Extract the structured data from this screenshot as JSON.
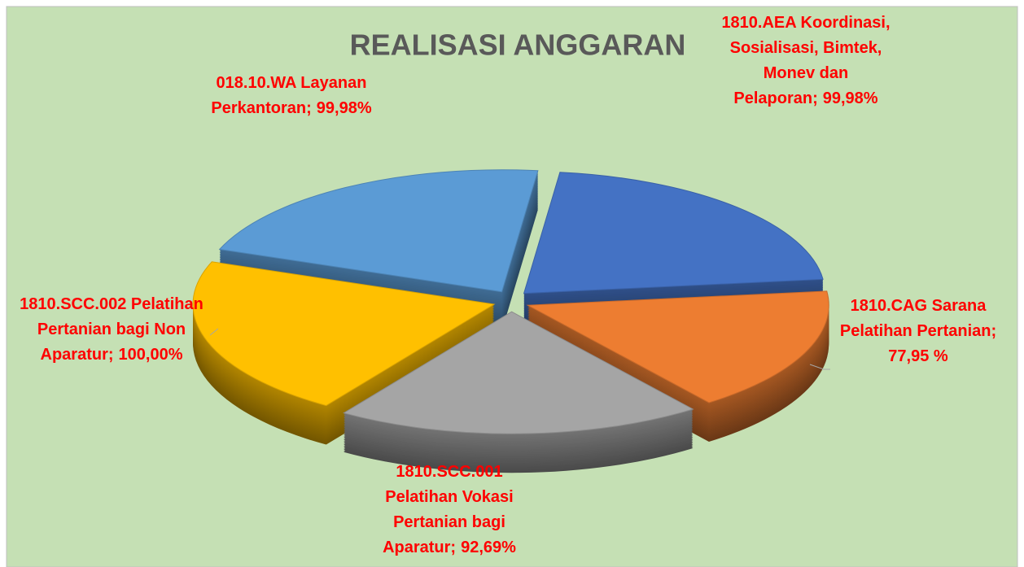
{
  "chart_data": {
    "type": "pie3d",
    "title": "REALISASI ANGGARAN",
    "categories": [
      "1810.AEA Koordinasi, Sosialisasi, Bimtek, Monev dan Pelaporan;",
      "1810.CAG Sarana Pelatihan Pertanian;",
      "1810.SCC.001 Pelatihan Vokasi Pertanian bagi Aparatur;",
      "1810.SCC.002 Pelatihan Pertanian bagi Non Aparatur;",
      "018.10.WA Layanan Perkantoran;"
    ],
    "values": [
      99.98,
      77.95,
      92.69,
      100.0,
      99.98
    ],
    "value_labels": [
      "99,98%",
      "77,95 %",
      "92,69%",
      "100,00%",
      "99,98%"
    ],
    "colors": [
      "#4472c4",
      "#ed7d31",
      "#a5a5a5",
      "#ffc000",
      "#5b9bd5"
    ]
  }
}
